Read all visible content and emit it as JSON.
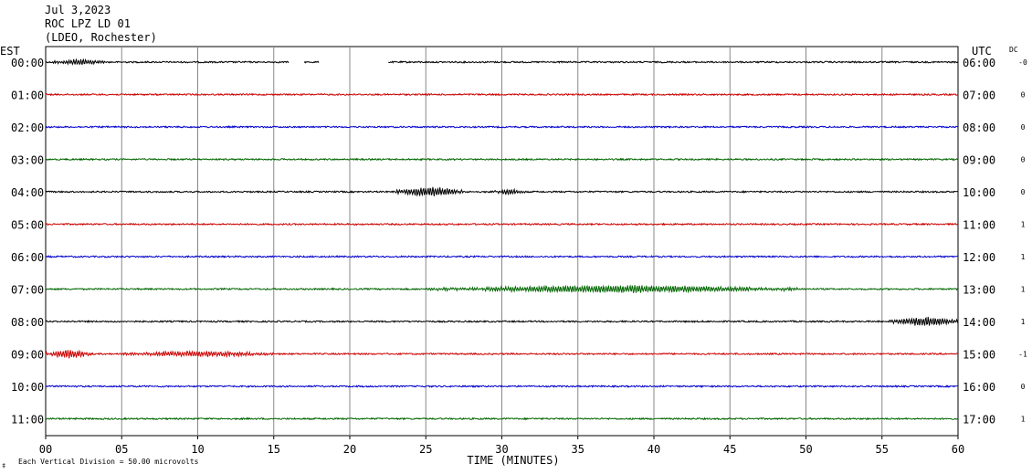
{
  "header": {
    "date": "Jul 3,2023",
    "station": "ROC LPZ LD 01",
    "network": "(LDEO, Rochester)"
  },
  "chart_data": {
    "type": "line",
    "left_axis_label": "EST",
    "right_axis_label": "UTC",
    "dc_label": "DC",
    "xlabel": "TIME (MINUTES)",
    "xlim": [
      0,
      60
    ],
    "xticks": [
      "00",
      "05",
      "10",
      "15",
      "20",
      "25",
      "30",
      "35",
      "40",
      "45",
      "50",
      "55",
      "60"
    ],
    "footnote": "Each Vertical Division =   50.00 microvolts",
    "corner_mark": "‡",
    "trace_colors": [
      "#000000",
      "#cc0000",
      "#0000cc",
      "#006600"
    ],
    "rows": [
      {
        "est": "00:00",
        "utc": "06:00",
        "dc": "-0",
        "gaps": [
          [
            16,
            17
          ],
          [
            18,
            22.5
          ]
        ],
        "events": [
          {
            "t0": 0.5,
            "t1": 4,
            "amp": 3
          }
        ]
      },
      {
        "est": "01:00",
        "utc": "07:00",
        "dc": "0",
        "gaps": [],
        "events": []
      },
      {
        "est": "02:00",
        "utc": "08:00",
        "dc": "0",
        "gaps": [],
        "events": []
      },
      {
        "est": "03:00",
        "utc": "09:00",
        "dc": "0",
        "gaps": [],
        "events": []
      },
      {
        "est": "04:00",
        "utc": "10:00",
        "dc": "0",
        "gaps": [],
        "events": [
          {
            "t0": 23,
            "t1": 27.5,
            "amp": 5
          },
          {
            "t0": 29.5,
            "t1": 31.5,
            "amp": 3
          }
        ]
      },
      {
        "est": "05:00",
        "utc": "11:00",
        "dc": "1",
        "gaps": [],
        "events": []
      },
      {
        "est": "06:00",
        "utc": "12:00",
        "dc": "1",
        "gaps": [],
        "events": []
      },
      {
        "est": "07:00",
        "utc": "13:00",
        "dc": "1",
        "gaps": [],
        "events": [
          {
            "t0": 25,
            "t1": 50,
            "amp": 4
          }
        ]
      },
      {
        "est": "08:00",
        "utc": "14:00",
        "dc": "1",
        "gaps": [],
        "events": [
          {
            "t0": 55.5,
            "t1": 60,
            "amp": 5
          }
        ]
      },
      {
        "est": "09:00",
        "utc": "15:00",
        "dc": "-1",
        "gaps": [],
        "events": [
          {
            "t0": 0,
            "t1": 3,
            "amp": 5
          },
          {
            "t0": 5,
            "t1": 15,
            "amp": 3
          }
        ]
      },
      {
        "est": "10:00",
        "utc": "16:00",
        "dc": "0",
        "gaps": [],
        "events": []
      },
      {
        "est": "11:00",
        "utc": "17:00",
        "dc": "1",
        "gaps": [],
        "events": []
      }
    ]
  }
}
